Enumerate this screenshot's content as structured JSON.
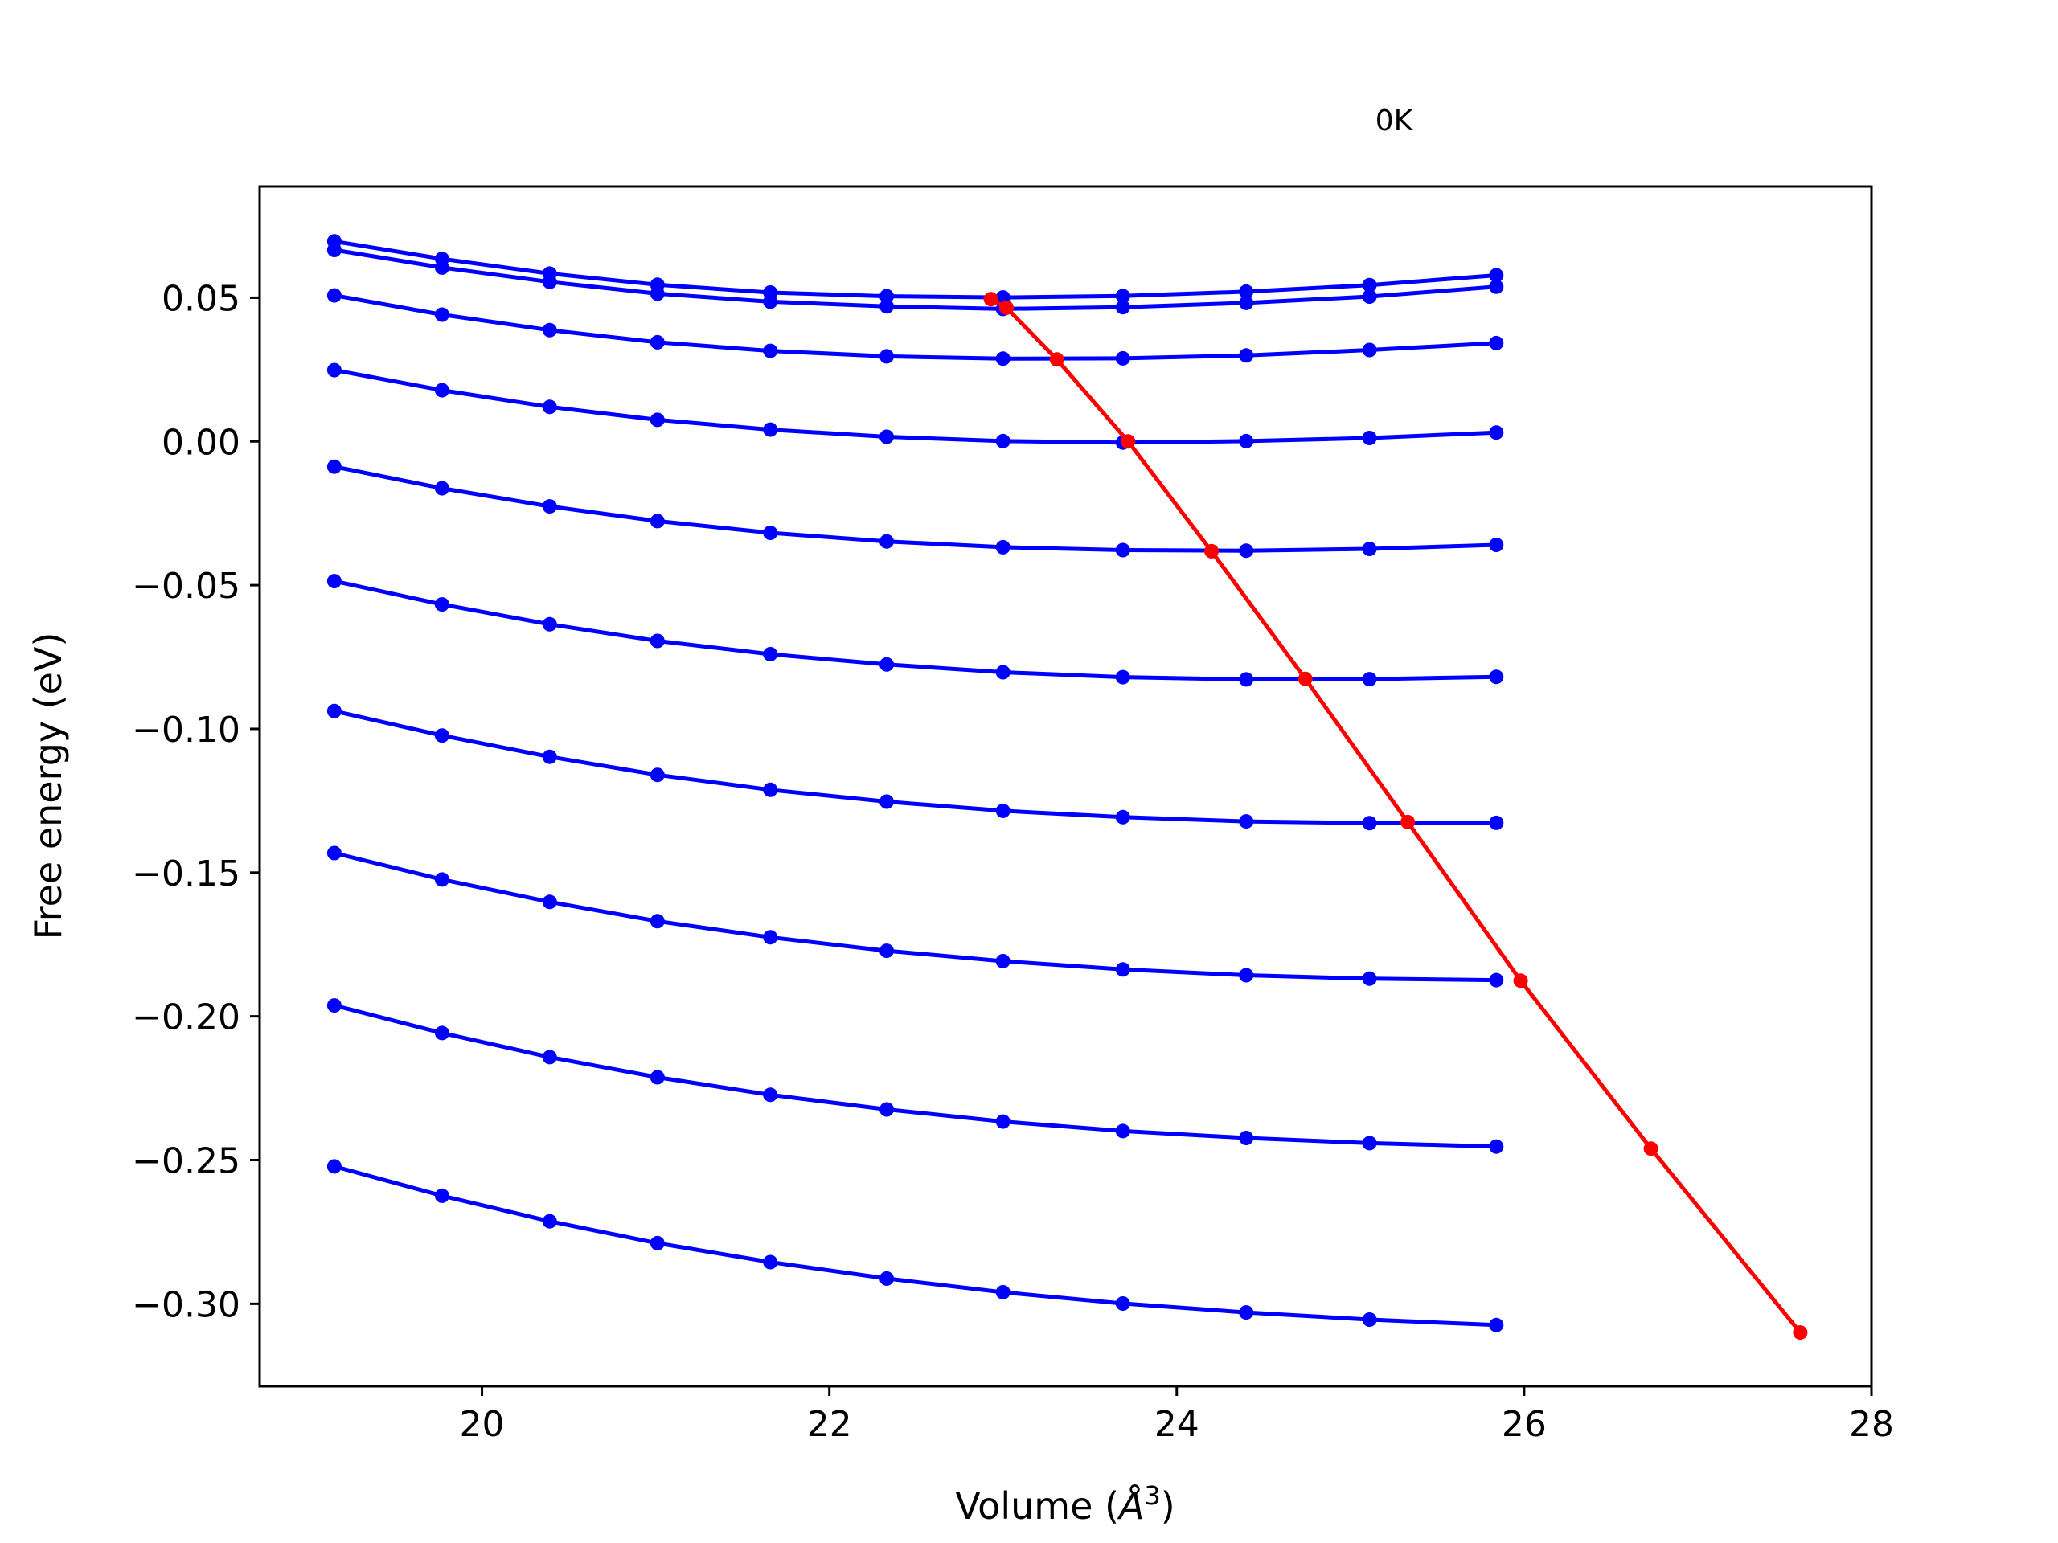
{
  "chart_data": {
    "type": "line",
    "title": "",
    "xlabel_main": "Volume (",
    "xlabel_unit": "Å",
    "xlabel_exp": "3",
    "xlabel_close": ")",
    "ylabel": "Free energy (eV)",
    "annotation": "0K",
    "xlim": [
      18.72,
      28.0
    ],
    "ylim": [
      -0.3287,
      0.0887
    ],
    "xticks": [
      20,
      22,
      24,
      26,
      28
    ],
    "xtick_labels": [
      "20",
      "22",
      "24",
      "26",
      "28"
    ],
    "yticks": [
      0.05,
      0.0,
      -0.05,
      -0.1,
      -0.15,
      -0.2,
      -0.25,
      -0.3
    ],
    "ytick_labels": [
      "0.05",
      "0.00",
      "−0.05",
      "−0.10",
      "−0.15",
      "−0.20",
      "−0.25",
      "−0.30"
    ],
    "grid": false,
    "colors": {
      "isotherms": "#0000ff",
      "minimum": "#ff0000",
      "axes": "#000000"
    },
    "x": [
      19.15,
      19.77,
      20.39,
      21.01,
      21.66,
      22.33,
      23.0,
      23.69,
      24.4,
      25.11,
      25.84
    ],
    "series": [
      {
        "color": "#0000ff",
        "values": [
          0.0696,
          0.0635,
          0.0584,
          0.0545,
          0.0518,
          0.0505,
          0.0501,
          0.0506,
          0.0521,
          0.0544,
          0.0578
        ]
      },
      {
        "color": "#0000ff",
        "values": [
          0.0666,
          0.0605,
          0.0555,
          0.0514,
          0.0486,
          0.047,
          0.0461,
          0.0467,
          0.0482,
          0.0504,
          0.0538
        ]
      },
      {
        "color": "#0000ff",
        "values": [
          0.0508,
          0.0441,
          0.0387,
          0.0345,
          0.0315,
          0.0296,
          0.0288,
          0.0289,
          0.0299,
          0.0318,
          0.0342
        ]
      },
      {
        "color": "#0000ff",
        "values": [
          0.0248,
          0.0178,
          0.012,
          0.0075,
          0.0041,
          0.0016,
          0.0001,
          -0.0004,
          0.0001,
          0.0012,
          0.0031
        ]
      },
      {
        "color": "#0000ff",
        "values": [
          -0.0088,
          -0.0163,
          -0.0226,
          -0.0277,
          -0.0318,
          -0.0348,
          -0.0368,
          -0.0378,
          -0.038,
          -0.0374,
          -0.036
        ]
      },
      {
        "color": "#0000ff",
        "values": [
          -0.0486,
          -0.0567,
          -0.0636,
          -0.0694,
          -0.074,
          -0.0776,
          -0.0803,
          -0.082,
          -0.0828,
          -0.0827,
          -0.0819
        ]
      },
      {
        "color": "#0000ff",
        "values": [
          -0.0938,
          -0.1023,
          -0.1097,
          -0.116,
          -0.1212,
          -0.1253,
          -0.1285,
          -0.1307,
          -0.1322,
          -0.1328,
          -0.1327
        ]
      },
      {
        "color": "#0000ff",
        "values": [
          -0.1432,
          -0.1524,
          -0.1602,
          -0.1669,
          -0.1725,
          -0.1772,
          -0.1808,
          -0.1837,
          -0.1857,
          -0.1869,
          -0.1874
        ]
      },
      {
        "color": "#0000ff",
        "values": [
          -0.1962,
          -0.2058,
          -0.2142,
          -0.2212,
          -0.2273,
          -0.2324,
          -0.2366,
          -0.2399,
          -0.2423,
          -0.2441,
          -0.2453
        ]
      },
      {
        "color": "#0000ff",
        "values": [
          -0.2522,
          -0.2624,
          -0.2713,
          -0.2789,
          -0.2855,
          -0.2912,
          -0.296,
          -0.2999,
          -0.303,
          -0.3055,
          -0.3074
        ]
      }
    ],
    "minimum_curve": {
      "color": "#ff0000",
      "x": [
        22.93,
        23.02,
        23.31,
        23.72,
        24.2,
        24.74,
        25.33,
        25.98,
        26.73,
        27.59
      ],
      "y": [
        0.0495,
        0.0465,
        0.0285,
        0.0,
        -0.0382,
        -0.0826,
        -0.1324,
        -0.1876,
        -0.246,
        -0.31
      ]
    }
  }
}
